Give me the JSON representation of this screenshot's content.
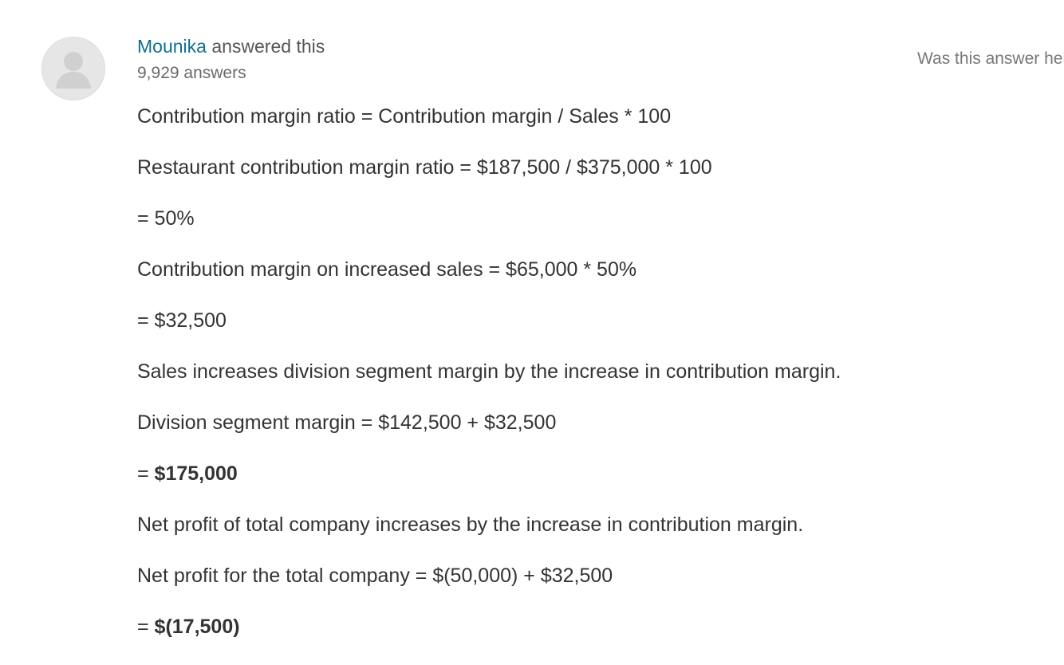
{
  "author": {
    "name": "Mounika",
    "action": " answered this",
    "answer_count": "9,929 answers"
  },
  "feedback": {
    "prompt": "Was this answer helpful?"
  },
  "answer": {
    "lines": [
      {
        "text": "Contribution margin ratio = Contribution margin / Sales * 100",
        "emphasis": ""
      },
      {
        "text": "Restaurant contribution margin ratio = $187,500 / $375,000 * 100",
        "emphasis": ""
      },
      {
        "text": "= 50%",
        "emphasis": ""
      },
      {
        "text": "Contribution margin on increased sales = $65,000 * 50%",
        "emphasis": ""
      },
      {
        "text": "= $32,500",
        "emphasis": ""
      },
      {
        "text": "Sales increases division segment margin by the increase in contribution margin.",
        "emphasis": ""
      },
      {
        "text": "Division segment margin = $142,500 + $32,500",
        "emphasis": ""
      },
      {
        "text": "= ",
        "emphasis": "$175,000"
      },
      {
        "text": "Net profit of total company increases by the increase in contribution margin.",
        "emphasis": ""
      },
      {
        "text": "Net profit for the total company = $(50,000) + $32,500",
        "emphasis": ""
      },
      {
        "text": "= ",
        "emphasis": "$(17,500)"
      }
    ]
  }
}
